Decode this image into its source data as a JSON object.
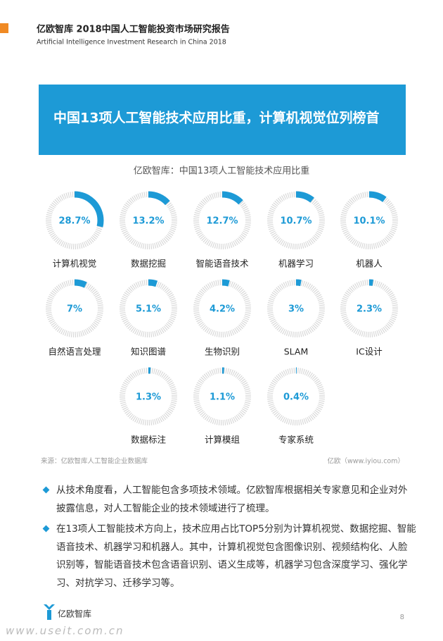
{
  "header": {
    "title": "亿欧智库 2018中国人工智能投资市场研究报告",
    "subtitle": "Artificial Intelligence Investment Research in China 2018"
  },
  "banner": "中国13项人工智能技术应用比重，计算机视觉位列榜首",
  "chart_data": {
    "type": "ring",
    "title": "亿欧智库：中国13项人工智能技术应用比重",
    "categories": [
      "计算机视觉",
      "数据挖掘",
      "智能语音技术",
      "机器学习",
      "机器人",
      "自然语言处理",
      "知识图谱",
      "生物识别",
      "SLAM",
      "IC设计",
      "数据标注",
      "计算模组",
      "专家系统"
    ],
    "values": [
      28.7,
      13.2,
      12.7,
      10.7,
      10.1,
      7,
      5.1,
      4.2,
      3,
      2.3,
      1.3,
      1.1,
      0.4
    ],
    "value_labels": [
      "28.7%",
      "13.2%",
      "12.7%",
      "10.7%",
      "10.1%",
      "7%",
      "5.1%",
      "4.2%",
      "3%",
      "2.3%",
      "1.3%",
      "1.1%",
      "0.4%"
    ],
    "color": "#1d9ad6",
    "track_color": "#d9d9d9"
  },
  "source": "来源：亿欧智库人工智能企业数据库",
  "credit": "亿欧（www.iyiou.com）",
  "bullets": [
    "从技术角度看，人工智能包含多项技术领域。亿欧智库根据相关专家意见和企业对外披露信息，对人工智能企业的技术领域进行了梳理。",
    "在13项人工智能技术方向上，技术应用占比TOP5分别为计算机视觉、数据挖掘、智能语音技术、机器学习和机器人。其中，计算机视觉包含图像识别、视频结构化、人脸识别等，智能语音技术包含语音识别、语义生成等，机器学习包含深度学习、强化学习、对抗学习、迁移学习等。"
  ],
  "footer": {
    "logo": "亿欧智库",
    "page": "8",
    "watermark": "www.useit.com.cn"
  }
}
